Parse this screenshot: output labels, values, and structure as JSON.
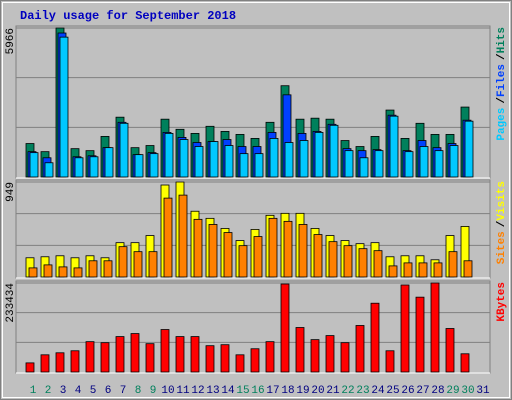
{
  "chart_data": [
    {
      "type": "bar",
      "title": "Daily usage for September 2018",
      "series": [
        {
          "name": "Hits",
          "color": "#00805c",
          "values": [
            1340,
            1015,
            5966,
            1135,
            1055,
            1625,
            2395,
            1175,
            1260,
            2315,
            1910,
            1745,
            2030,
            1825,
            1705,
            1545,
            2190,
            3655,
            2315,
            2355,
            2315,
            1460,
            1220,
            1625,
            2680,
            1545,
            2150,
            1705,
            1705,
            2800,
            0
          ]
        },
        {
          "name": "Files",
          "color": "#0040ff",
          "values": [
            1015,
            770,
            5765,
            810,
            850,
            1175,
            2190,
            895,
            975,
            1785,
            1585,
            1380,
            1420,
            1500,
            1220,
            1220,
            1785,
            3290,
            1745,
            1825,
            2110,
            1135,
            1055,
            1095,
            2475,
            1055,
            1460,
            1175,
            1340,
            2275,
            0
          ]
        },
        {
          "name": "Pages",
          "color": "#00c8ff",
          "values": [
            975,
            570,
            5600,
            770,
            810,
            1175,
            2150,
            895,
            935,
            1745,
            1500,
            1220,
            1420,
            1260,
            935,
            935,
            1545,
            1380,
            1460,
            1785,
            2070,
            1055,
            770,
            1055,
            2435,
            1015,
            1220,
            1055,
            1260,
            2235,
            0
          ]
        }
      ],
      "legend_separator": "/",
      "ylim": [
        0,
        5966
      ],
      "yticks": [
        5966
      ],
      "grid": true
    },
    {
      "type": "bar",
      "series": [
        {
          "name": "Visits",
          "color": "#ffff00",
          "values": [
            192,
            202,
            212,
            192,
            212,
            192,
            343,
            343,
            414,
            919,
            949,
            657,
            586,
            485,
            364,
            475,
            616,
            636,
            636,
            485,
            414,
            364,
            333,
            343,
            202,
            212,
            212,
            172,
            414,
            505,
            0
          ]
        },
        {
          "name": "Sites",
          "color": "#ff8000",
          "values": [
            91,
            121,
            101,
            91,
            162,
            162,
            303,
            253,
            253,
            788,
            818,
            576,
            525,
            444,
            313,
            404,
            586,
            556,
            525,
            424,
            353,
            313,
            283,
            263,
            111,
            141,
            141,
            141,
            253,
            162,
            0
          ]
        }
      ],
      "legend_separator": "/",
      "ylim": [
        0,
        949
      ],
      "yticks": [
        949
      ],
      "grid": true
    },
    {
      "type": "bar",
      "categories": [
        "1",
        "2",
        "3",
        "4",
        "5",
        "6",
        "7",
        "8",
        "9",
        "10",
        "11",
        "12",
        "13",
        "14",
        "15",
        "16",
        "17",
        "18",
        "19",
        "20",
        "21",
        "22",
        "23",
        "24",
        "25",
        "26",
        "27",
        "28",
        "29",
        "30",
        "31"
      ],
      "category_colors": [
        "#00805c",
        "#00805c",
        "#000080",
        "#000080",
        "#000080",
        "#000080",
        "#000080",
        "#00805c",
        "#00805c",
        "#000080",
        "#000080",
        "#000080",
        "#000080",
        "#000080",
        "#00805c",
        "#00805c",
        "#000080",
        "#000080",
        "#000080",
        "#000080",
        "#000080",
        "#00805c",
        "#00805c",
        "#000080",
        "#000080",
        "#000080",
        "#000080",
        "#000080",
        "#00805c",
        "#00805c",
        "#000080"
      ],
      "series": [
        {
          "name": "KBytes",
          "color": "#ff0000",
          "values": [
            23900,
            45100,
            50400,
            55700,
            79600,
            76900,
            92900,
            100800,
            74300,
            111400,
            92900,
            92900,
            69000,
            71600,
            45100,
            61000,
            79600,
            230800,
            116700,
            84900,
            95500,
            76900,
            122000,
            180400,
            55700,
            228200,
            196300,
            233434,
            114100,
            47800,
            0
          ]
        }
      ],
      "ylim": [
        0,
        233434
      ],
      "yticks": [
        233434
      ],
      "grid": true
    }
  ]
}
